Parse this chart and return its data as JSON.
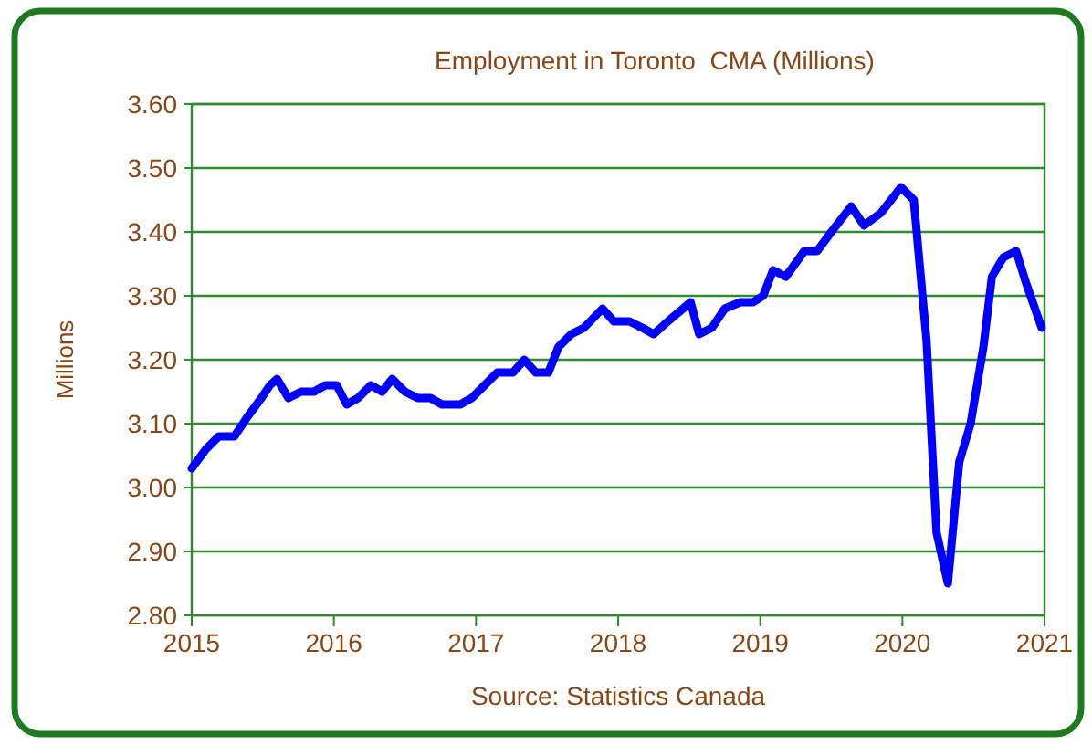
{
  "chart_data": {
    "type": "line",
    "title": "Employment in Toronto  CMA (Millions)",
    "ylabel": "Millions",
    "annotations": [
      "Source:  Statistics Canada"
    ],
    "x": [
      2015.0,
      2015.1,
      2015.19,
      2015.3,
      2015.39,
      2015.49,
      2015.55,
      2015.6,
      2015.68,
      2015.77,
      2015.86,
      2015.94,
      2016.02,
      2016.09,
      2016.17,
      2016.26,
      2016.34,
      2016.41,
      2016.5,
      2016.59,
      2016.68,
      2016.76,
      2016.89,
      2016.97,
      2017.06,
      2017.15,
      2017.26,
      2017.34,
      2017.42,
      2017.51,
      2017.58,
      2017.67,
      2017.76,
      2017.89,
      2017.97,
      2018.08,
      2018.17,
      2018.25,
      2018.35,
      2018.51,
      2018.57,
      2018.66,
      2018.75,
      2018.86,
      2018.95,
      2019.02,
      2019.09,
      2019.18,
      2019.31,
      2019.4,
      2019.5,
      2019.64,
      2019.73,
      2019.85,
      2019.99,
      2020.08,
      2020.17,
      2020.24,
      2020.32,
      2020.4,
      2020.48,
      2020.57,
      2020.63,
      2020.71,
      2020.8,
      2020.87,
      2020.98
    ],
    "series": [
      {
        "color": "#0000ff",
        "values": [
          3.03,
          3.06,
          3.08,
          3.08,
          3.11,
          3.14,
          3.16,
          3.17,
          3.14,
          3.15,
          3.15,
          3.16,
          3.16,
          3.13,
          3.14,
          3.16,
          3.15,
          3.17,
          3.15,
          3.14,
          3.14,
          3.13,
          3.13,
          3.14,
          3.16,
          3.18,
          3.18,
          3.2,
          3.18,
          3.18,
          3.22,
          3.24,
          3.25,
          3.28,
          3.26,
          3.26,
          3.25,
          3.24,
          3.26,
          3.29,
          3.24,
          3.25,
          3.28,
          3.29,
          3.29,
          3.3,
          3.34,
          3.33,
          3.37,
          3.37,
          3.4,
          3.44,
          3.41,
          3.43,
          3.47,
          3.45,
          3.23,
          2.93,
          2.85,
          3.04,
          3.1,
          3.22,
          3.33,
          3.36,
          3.37,
          3.32,
          3.25
        ]
      }
    ],
    "xlim": [
      2015,
      2021
    ],
    "xticks": [
      2015,
      2016,
      2017,
      2018,
      2019,
      2020,
      2021
    ],
    "ylim": [
      2.8,
      3.6
    ],
    "yticks": [
      {
        "value": 2.8,
        "label": "2.80"
      },
      {
        "value": 2.9,
        "label": "2.90"
      },
      {
        "value": 3.0,
        "label": "3.00"
      },
      {
        "value": 3.1,
        "label": "3.10"
      },
      {
        "value": 3.2,
        "label": "3.20"
      },
      {
        "value": 3.3,
        "label": "3.30"
      },
      {
        "value": 3.4,
        "label": "3.40"
      },
      {
        "value": 3.5,
        "label": "3.50"
      },
      {
        "value": 3.6,
        "label": "3.60"
      }
    ],
    "grid": "y",
    "marker": "none",
    "line_style": "solid"
  }
}
